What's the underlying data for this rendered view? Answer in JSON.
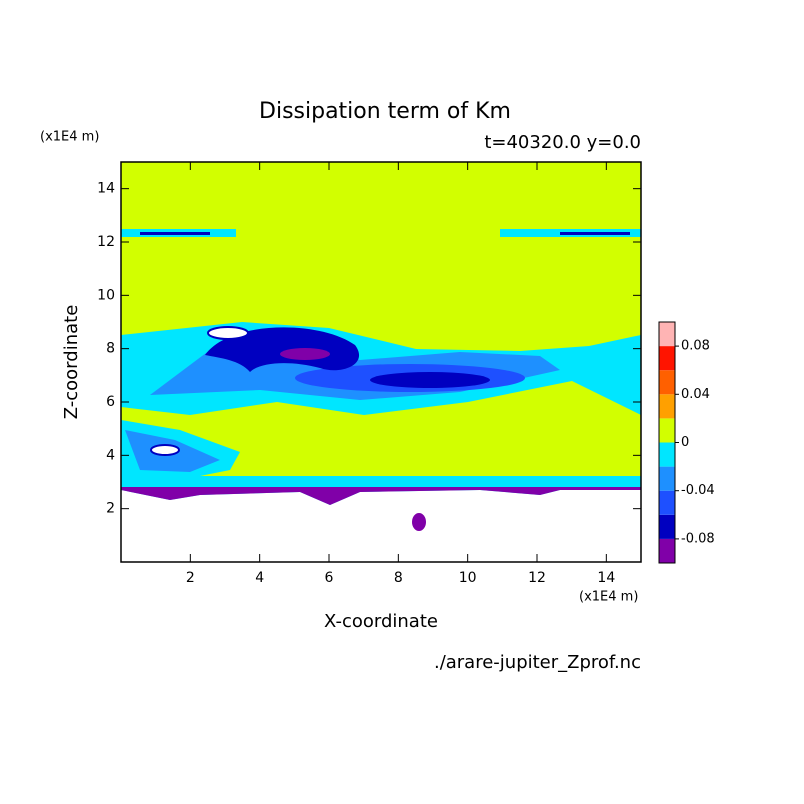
{
  "chart_data": {
    "type": "contour",
    "title": "Dissipation term of Km",
    "subtitle": "t=40320.0 y=0.0",
    "x_label": "X-coordinate",
    "y_label": "Z-coordinate",
    "x_unit": "(x1E4 m)",
    "y_unit": "(x1E4 m)",
    "source": "./arare-jupiter_Zprof.nc",
    "xlim": [
      0,
      15
    ],
    "xticks": [
      2,
      4,
      6,
      8,
      10,
      12,
      14
    ],
    "ylim": [
      0,
      15
    ],
    "yticks": [
      2,
      4,
      6,
      8,
      10,
      12,
      14
    ],
    "levels": [
      -0.1,
      -0.08,
      -0.06,
      -0.04,
      -0.02,
      0,
      0.02,
      0.04,
      0.06,
      0.08,
      0.1
    ],
    "colors": [
      "#8000a8",
      "#0000c0",
      "#1e50ff",
      "#1e90ff",
      "#00e6ff",
      "#d2ff00",
      "#ffa000",
      "#ff6000",
      "#ff1400",
      "#ffb4b4"
    ],
    "colorbar_ticks": [
      -0.08,
      -0.04,
      0,
      0.04,
      0.08
    ]
  }
}
